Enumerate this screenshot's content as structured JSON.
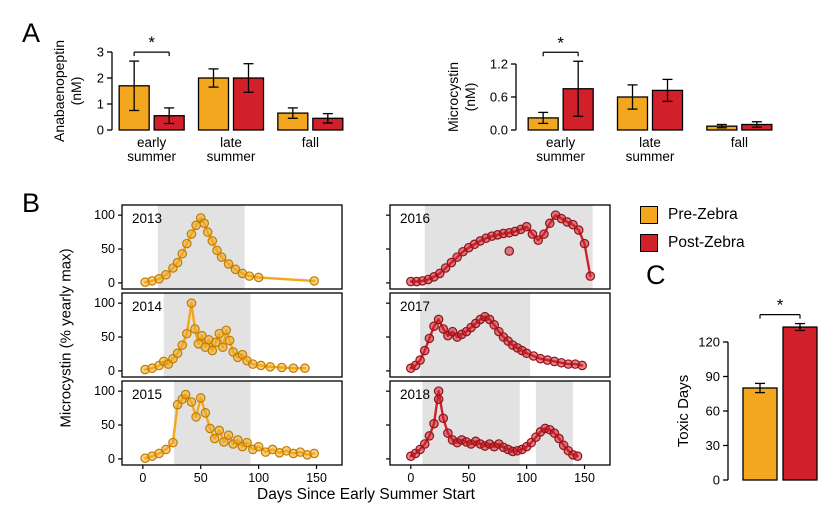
{
  "figure": {
    "colors": {
      "pre": "#F3A71E",
      "post": "#D2202A",
      "pre_point_fill": "rgba(243,167,30,0.55)",
      "post_point_fill": "rgba(210,32,42,0.55)",
      "pre_point_stroke": "#C07D00",
      "post_point_stroke": "#8F151C",
      "shade": "#E2E2E2"
    },
    "legend": {
      "items": [
        {
          "key": "pre",
          "label": "Pre-Zebra"
        },
        {
          "key": "post",
          "label": "Post-Zebra"
        }
      ]
    }
  },
  "panel_labels": {
    "a": "A",
    "b": "B",
    "c": "C"
  },
  "chart_data": [
    {
      "id": "anabaenopeptin-by-season",
      "type": "bar",
      "ylabel_lines": [
        "Anabaenopeptin",
        "(nM)"
      ],
      "ylim": [
        0,
        3.4
      ],
      "yticks": [
        0,
        1,
        2,
        3
      ],
      "ytick_labels": [
        "0",
        "1",
        "2",
        "3"
      ],
      "categories": [
        [
          "early",
          "summer"
        ],
        [
          "late",
          "summer"
        ],
        [
          "fall"
        ]
      ],
      "series": [
        {
          "key": "pre",
          "name": "Pre-Zebra",
          "values": [
            1.7,
            2.0,
            0.65
          ],
          "errors": [
            0.95,
            0.35,
            0.2
          ]
        },
        {
          "key": "post",
          "name": "Post-Zebra",
          "values": [
            0.55,
            2.0,
            0.45
          ],
          "errors": [
            0.3,
            0.55,
            0.18
          ]
        }
      ],
      "significance": [
        {
          "category": 0,
          "symbol": "*"
        }
      ]
    },
    {
      "id": "microcystin-by-season",
      "type": "bar",
      "ylabel_lines": [
        "Microcystin",
        "(nM)"
      ],
      "ylim": [
        0,
        1.5
      ],
      "yticks": [
        0,
        0.6,
        1.2
      ],
      "ytick_labels": [
        "0.0",
        "0.6",
        "1.2"
      ],
      "categories": [
        [
          "early",
          "summer"
        ],
        [
          "late",
          "summer"
        ],
        [
          "fall"
        ]
      ],
      "series": [
        {
          "key": "pre",
          "name": "Pre-Zebra",
          "values": [
            0.22,
            0.6,
            0.07
          ],
          "errors": [
            0.1,
            0.22,
            0.03
          ]
        },
        {
          "key": "post",
          "name": "Post-Zebra",
          "values": [
            0.75,
            0.72,
            0.1
          ],
          "errors": [
            0.5,
            0.2,
            0.05
          ]
        }
      ],
      "significance": [
        {
          "category": 0,
          "symbol": "*"
        }
      ]
    },
    {
      "id": "microcystin-timeseries-by-year",
      "type": "line",
      "ylabel": "Microcystin (% yearly max)",
      "xlabel": "Days Since Early Summer Start",
      "xticks": [
        0,
        50,
        100,
        150
      ],
      "yticks": [
        0,
        50,
        100
      ],
      "xlim": [
        -18,
        172
      ],
      "ylim": [
        -9,
        115
      ],
      "subplots": [
        {
          "year": "2013",
          "key": "pre",
          "shade": [
            [
              13,
              88
            ]
          ],
          "points": [
            [
              2,
              1
            ],
            [
              8,
              3
            ],
            [
              14,
              6
            ],
            [
              20,
              12
            ],
            [
              26,
              22
            ],
            [
              30,
              30
            ],
            [
              34,
              43
            ],
            [
              38,
              58
            ],
            [
              42,
              72
            ],
            [
              46,
              85
            ],
            [
              50,
              96
            ],
            [
              53,
              88
            ],
            [
              56,
              75
            ],
            [
              60,
              62
            ],
            [
              64,
              48
            ],
            [
              68,
              38
            ],
            [
              74,
              28
            ],
            [
              80,
              20
            ],
            [
              86,
              14
            ],
            [
              92,
              10
            ],
            [
              100,
              8
            ],
            [
              148,
              3
            ]
          ]
        },
        {
          "year": "2014",
          "key": "pre",
          "shade": [
            [
              18,
              93
            ]
          ],
          "points": [
            [
              2,
              2
            ],
            [
              8,
              4
            ],
            [
              14,
              8
            ],
            [
              18,
              14
            ],
            [
              22,
              10
            ],
            [
              26,
              18
            ],
            [
              30,
              26
            ],
            [
              34,
              38
            ],
            [
              38,
              55
            ],
            [
              42,
              100
            ],
            [
              45,
              62
            ],
            [
              48,
              40
            ],
            [
              51,
              52
            ],
            [
              54,
              35
            ],
            [
              57,
              46
            ],
            [
              60,
              30
            ],
            [
              63,
              42
            ],
            [
              66,
              55
            ],
            [
              69,
              35
            ],
            [
              72,
              60
            ],
            [
              75,
              45
            ],
            [
              78,
              28
            ],
            [
              82,
              20
            ],
            [
              86,
              24
            ],
            [
              90,
              15
            ],
            [
              95,
              10
            ],
            [
              102,
              8
            ],
            [
              110,
              6
            ],
            [
              120,
              5
            ],
            [
              130,
              4
            ],
            [
              140,
              4
            ]
          ]
        },
        {
          "year": "2015",
          "key": "pre",
          "shade": [
            [
              27,
              93
            ]
          ],
          "points": [
            [
              2,
              1
            ],
            [
              8,
              4
            ],
            [
              14,
              8
            ],
            [
              20,
              14
            ],
            [
              26,
              24
            ],
            [
              30,
              80
            ],
            [
              34,
              88
            ],
            [
              37,
              95
            ],
            [
              42,
              84
            ],
            [
              46,
              62
            ],
            [
              50,
              90
            ],
            [
              54,
              68
            ],
            [
              58,
              45
            ],
            [
              62,
              30
            ],
            [
              66,
              42
            ],
            [
              70,
              25
            ],
            [
              74,
              35
            ],
            [
              78,
              22
            ],
            [
              82,
              28
            ],
            [
              86,
              18
            ],
            [
              90,
              24
            ],
            [
              95,
              14
            ],
            [
              100,
              18
            ],
            [
              106,
              10
            ],
            [
              112,
              14
            ],
            [
              118,
              9
            ],
            [
              124,
              12
            ],
            [
              130,
              8
            ],
            [
              136,
              10
            ],
            [
              142,
              6
            ],
            [
              148,
              8
            ]
          ]
        },
        {
          "year": "2016",
          "key": "post",
          "shade": [
            [
              12,
              157
            ]
          ],
          "points": [
            [
              0,
              2
            ],
            [
              5,
              2
            ],
            [
              10,
              3
            ],
            [
              15,
              5
            ],
            [
              20,
              9
            ],
            [
              25,
              14
            ],
            [
              30,
              22
            ],
            [
              35,
              30
            ],
            [
              40,
              38
            ],
            [
              45,
              46
            ],
            [
              50,
              52
            ],
            [
              55,
              57
            ],
            [
              60,
              62
            ],
            [
              65,
              66
            ],
            [
              70,
              69
            ],
            [
              75,
              71
            ],
            [
              80,
              73
            ],
            [
              85,
              74
            ],
            [
              90,
              76
            ],
            [
              95,
              79
            ],
            [
              100,
              83
            ],
            [
              105,
              72
            ],
            [
              110,
              63
            ],
            [
              115,
              72
            ],
            [
              120,
              88
            ],
            [
              125,
              100
            ],
            [
              130,
              95
            ],
            [
              135,
              90
            ],
            [
              140,
              86
            ],
            [
              145,
              78
            ],
            [
              150,
              58
            ],
            [
              155,
              10
            ]
          ],
          "extra_points": [
            [
              85,
              47
            ]
          ]
        },
        {
          "year": "2017",
          "key": "post",
          "shade": [
            [
              8,
              103
            ]
          ],
          "points": [
            [
              0,
              4
            ],
            [
              4,
              8
            ],
            [
              8,
              16
            ],
            [
              12,
              30
            ],
            [
              16,
              48
            ],
            [
              20,
              66
            ],
            [
              24,
              76
            ],
            [
              28,
              62
            ],
            [
              32,
              52
            ],
            [
              36,
              58
            ],
            [
              40,
              50
            ],
            [
              44,
              54
            ],
            [
              48,
              58
            ],
            [
              52,
              64
            ],
            [
              56,
              70
            ],
            [
              60,
              76
            ],
            [
              64,
              80
            ],
            [
              68,
              76
            ],
            [
              72,
              68
            ],
            [
              76,
              58
            ],
            [
              80,
              50
            ],
            [
              84,
              44
            ],
            [
              88,
              38
            ],
            [
              92,
              34
            ],
            [
              96,
              30
            ],
            [
              100,
              26
            ],
            [
              106,
              22
            ],
            [
              112,
              18
            ],
            [
              118,
              16
            ],
            [
              124,
              14
            ],
            [
              130,
              12
            ],
            [
              136,
              10
            ],
            [
              142,
              10
            ],
            [
              148,
              8
            ]
          ]
        },
        {
          "year": "2018",
          "key": "post",
          "shade": [
            [
              10,
              94
            ],
            [
              108,
              140
            ]
          ],
          "points": [
            [
              0,
              4
            ],
            [
              4,
              8
            ],
            [
              8,
              14
            ],
            [
              12,
              22
            ],
            [
              16,
              34
            ],
            [
              20,
              52
            ],
            [
              24,
              100
            ],
            [
              28,
              60
            ],
            [
              32,
              38
            ],
            [
              36,
              28
            ],
            [
              40,
              24
            ],
            [
              44,
              28
            ],
            [
              48,
              25
            ],
            [
              52,
              22
            ],
            [
              56,
              26
            ],
            [
              60,
              22
            ],
            [
              64,
              19
            ],
            [
              68,
              22
            ],
            [
              72,
              18
            ],
            [
              76,
              22
            ],
            [
              80,
              17
            ],
            [
              84,
              14
            ],
            [
              88,
              11
            ],
            [
              92,
              12
            ],
            [
              96,
              14
            ],
            [
              100,
              18
            ],
            [
              104,
              24
            ],
            [
              108,
              32
            ],
            [
              112,
              40
            ],
            [
              116,
              45
            ],
            [
              120,
              43
            ],
            [
              124,
              38
            ],
            [
              128,
              30
            ],
            [
              132,
              20
            ],
            [
              136,
              12
            ],
            [
              140,
              6
            ],
            [
              144,
              4
            ]
          ],
          "extra_points": [
            [
              24,
              88
            ]
          ]
        }
      ]
    },
    {
      "id": "toxic-days",
      "type": "bar",
      "ylabel": "Toxic Days",
      "yticks": [
        0,
        30,
        60,
        90,
        120
      ],
      "ytick_labels": [
        "0",
        "30",
        "60",
        "90",
        "120"
      ],
      "ylim": [
        0,
        148
      ],
      "bars": [
        {
          "key": "pre",
          "name": "Pre-Zebra",
          "value": 80,
          "error": 4
        },
        {
          "key": "post",
          "name": "Post-Zebra",
          "value": 133,
          "error": 3
        }
      ],
      "significance": "*"
    }
  ]
}
